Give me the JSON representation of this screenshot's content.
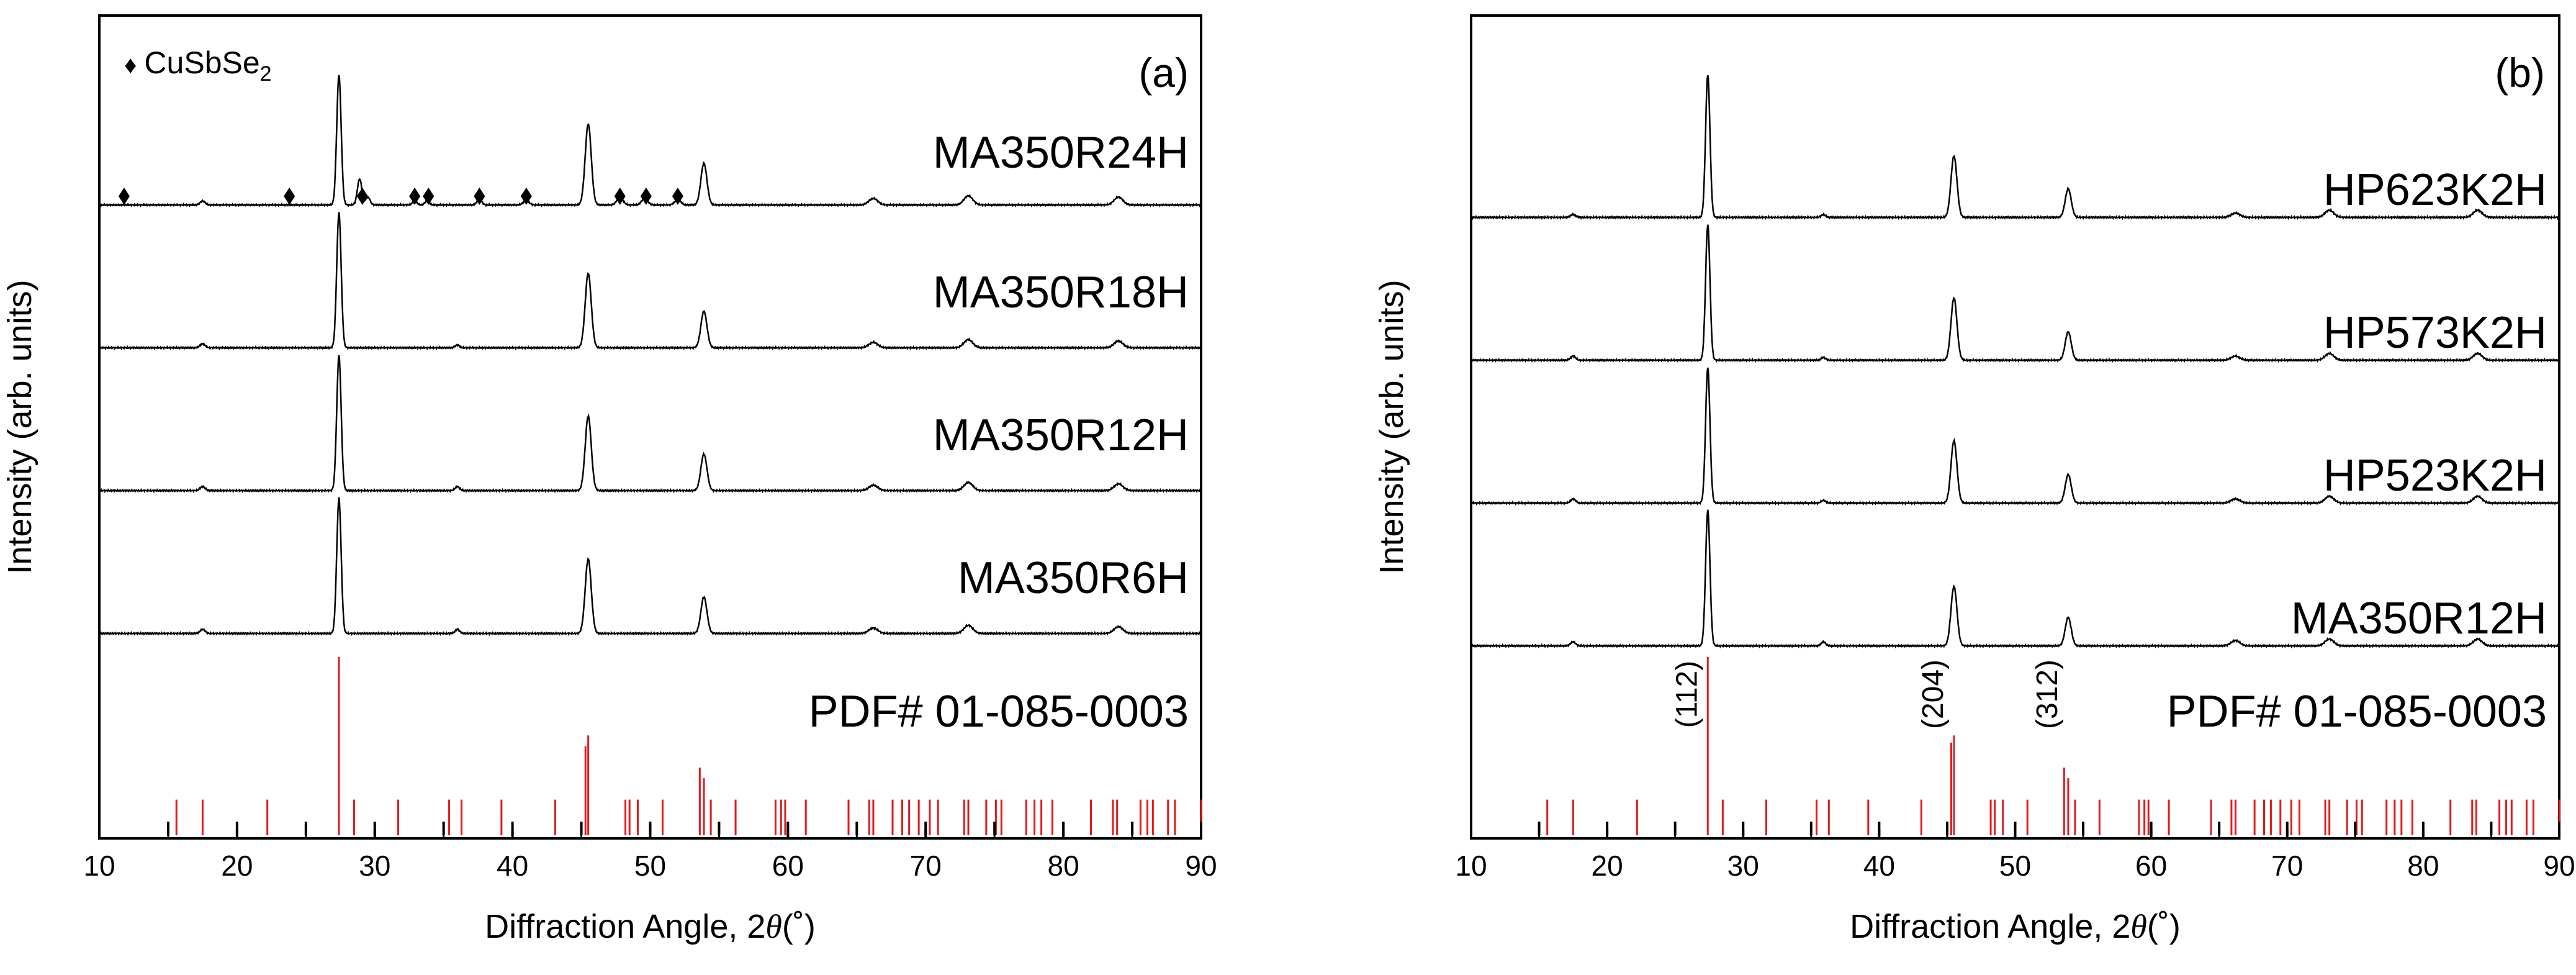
{
  "chart_data": [
    {
      "panel": "(a)",
      "type": "line",
      "title": "",
      "xlabel_prefix": "Diffraction Angle, 2",
      "xlabel_theta": "θ",
      "xlabel_suffix": "(˚)",
      "ylabel": "Intensity (arb. units)",
      "xlim": [
        10,
        90
      ],
      "xticks": [
        10,
        20,
        30,
        40,
        50,
        60,
        70,
        80,
        90
      ],
      "legend": {
        "marker": "♦",
        "text": "CuSbSe",
        "sub": "2"
      },
      "series": [
        {
          "name": "MA350R24H",
          "peaks": [
            [
              27.4,
              1.0
            ],
            [
              28.9,
              0.2
            ],
            [
              45.5,
              0.62
            ],
            [
              53.9,
              0.32
            ],
            [
              17.5,
              0.03
            ],
            [
              66.2,
              0.05
            ],
            [
              73.1,
              0.07
            ],
            [
              84.0,
              0.06
            ],
            [
              29.5,
              0.06
            ],
            [
              32.9,
              0.03
            ],
            [
              33.8,
              0.03
            ],
            [
              37.6,
              0.05
            ],
            [
              41.0,
              0.03
            ],
            [
              47.8,
              0.06
            ],
            [
              49.6,
              0.05
            ],
            [
              52.0,
              0.04
            ]
          ],
          "markers": [
            11.8,
            23.8,
            29.1,
            32.9,
            33.9,
            37.6,
            41.0,
            47.8,
            49.7,
            52.0
          ]
        },
        {
          "name": "MA350R18H",
          "peaks": [
            [
              27.4,
              1.0
            ],
            [
              45.5,
              0.55
            ],
            [
              53.9,
              0.27
            ],
            [
              17.5,
              0.03
            ],
            [
              36.0,
              0.02
            ],
            [
              66.2,
              0.04
            ],
            [
              73.1,
              0.06
            ],
            [
              84.0,
              0.05
            ]
          ],
          "markers": []
        },
        {
          "name": "MA350R12H",
          "peaks": [
            [
              27.4,
              1.0
            ],
            [
              45.5,
              0.55
            ],
            [
              53.9,
              0.27
            ],
            [
              17.5,
              0.03
            ],
            [
              36.0,
              0.03
            ],
            [
              66.2,
              0.04
            ],
            [
              73.1,
              0.06
            ],
            [
              84.0,
              0.05
            ]
          ],
          "markers": []
        },
        {
          "name": "MA350R6H",
          "peaks": [
            [
              27.4,
              1.0
            ],
            [
              45.5,
              0.55
            ],
            [
              53.9,
              0.27
            ],
            [
              17.5,
              0.03
            ],
            [
              36.0,
              0.03
            ],
            [
              66.2,
              0.04
            ],
            [
              73.1,
              0.06
            ],
            [
              84.0,
              0.05
            ]
          ],
          "markers": []
        }
      ],
      "reference": {
        "label": "PDF# 01-085-0003",
        "red_sticks": [
          [
            15.6,
            0.2
          ],
          [
            17.5,
            0.2
          ],
          [
            22.2,
            0.2
          ],
          [
            27.4,
            1.0
          ],
          [
            28.5,
            0.2
          ],
          [
            31.7,
            0.2
          ],
          [
            35.4,
            0.2
          ],
          [
            36.3,
            0.2
          ],
          [
            39.2,
            0.2
          ],
          [
            43.1,
            0.2
          ],
          [
            45.3,
            0.5
          ],
          [
            45.5,
            0.56
          ],
          [
            48.2,
            0.2
          ],
          [
            48.5,
            0.2
          ],
          [
            49.1,
            0.2
          ],
          [
            50.9,
            0.2
          ],
          [
            53.6,
            0.38
          ],
          [
            53.9,
            0.32
          ],
          [
            54.4,
            0.2
          ],
          [
            56.2,
            0.2
          ],
          [
            59.1,
            0.2
          ],
          [
            59.5,
            0.2
          ],
          [
            59.8,
            0.2
          ],
          [
            61.3,
            0.2
          ],
          [
            64.4,
            0.2
          ],
          [
            65.9,
            0.2
          ],
          [
            66.2,
            0.2
          ],
          [
            67.6,
            0.2
          ],
          [
            68.3,
            0.2
          ],
          [
            68.8,
            0.2
          ],
          [
            69.5,
            0.2
          ],
          [
            70.3,
            0.2
          ],
          [
            70.9,
            0.2
          ],
          [
            72.8,
            0.2
          ],
          [
            73.1,
            0.2
          ],
          [
            74.4,
            0.2
          ],
          [
            75.1,
            0.2
          ],
          [
            75.5,
            0.2
          ],
          [
            77.3,
            0.2
          ],
          [
            77.9,
            0.2
          ],
          [
            78.4,
            0.2
          ],
          [
            79.2,
            0.2
          ],
          [
            82.0,
            0.2
          ],
          [
            83.6,
            0.2
          ],
          [
            83.9,
            0.2
          ],
          [
            85.6,
            0.2
          ],
          [
            86.1,
            0.2
          ],
          [
            86.5,
            0.2
          ],
          [
            87.6,
            0.2
          ],
          [
            88.1,
            0.2
          ],
          [
            90.0,
            0.2
          ]
        ],
        "black_sticks": [
          15,
          20,
          25,
          30,
          35,
          40,
          45,
          50,
          55,
          60,
          65,
          70,
          75,
          80,
          85,
          90
        ]
      }
    },
    {
      "panel": "(b)",
      "type": "line",
      "title": "",
      "xlabel_prefix": "Diffraction Angle, 2",
      "xlabel_theta": "θ",
      "xlabel_suffix": "(˚)",
      "ylabel": "Intensity (arb. units)",
      "xlim": [
        10,
        90
      ],
      "xticks": [
        10,
        20,
        30,
        40,
        50,
        60,
        70,
        80,
        90
      ],
      "series": [
        {
          "name": "HP623K2H",
          "peaks": [
            [
              27.4,
              1.0
            ],
            [
              45.5,
              0.43
            ],
            [
              53.9,
              0.2
            ],
            [
              17.5,
              0.02
            ],
            [
              35.9,
              0.02
            ],
            [
              66.2,
              0.03
            ],
            [
              73.1,
              0.05
            ],
            [
              84.0,
              0.05
            ]
          ]
        },
        {
          "name": "HP573K2H",
          "peaks": [
            [
              27.4,
              1.0
            ],
            [
              45.5,
              0.46
            ],
            [
              53.9,
              0.21
            ],
            [
              17.5,
              0.03
            ],
            [
              35.9,
              0.02
            ],
            [
              66.2,
              0.03
            ],
            [
              73.1,
              0.05
            ],
            [
              84.0,
              0.05
            ]
          ]
        },
        {
          "name": "HP523K2H",
          "peaks": [
            [
              27.4,
              1.0
            ],
            [
              45.5,
              0.46
            ],
            [
              53.9,
              0.21
            ],
            [
              17.5,
              0.03
            ],
            [
              35.9,
              0.02
            ],
            [
              66.2,
              0.03
            ],
            [
              73.1,
              0.05
            ],
            [
              84.0,
              0.05
            ]
          ]
        },
        {
          "name": "MA350R12H",
          "peaks": [
            [
              27.4,
              1.0
            ],
            [
              45.5,
              0.44
            ],
            [
              53.9,
              0.21
            ],
            [
              17.5,
              0.03
            ],
            [
              35.9,
              0.03
            ],
            [
              66.2,
              0.04
            ],
            [
              73.1,
              0.05
            ],
            [
              84.0,
              0.05
            ]
          ]
        }
      ],
      "reference": {
        "label": "PDF# 01-085-0003",
        "annotations": [
          {
            "text": "(112)",
            "x": 27.4
          },
          {
            "text": "(204)",
            "x": 45.5
          },
          {
            "text": "(312)",
            "x": 53.9
          }
        ],
        "red_sticks": [
          [
            15.6,
            0.2
          ],
          [
            17.5,
            0.2
          ],
          [
            22.2,
            0.2
          ],
          [
            27.4,
            1.0
          ],
          [
            28.5,
            0.2
          ],
          [
            31.7,
            0.2
          ],
          [
            35.4,
            0.2
          ],
          [
            36.3,
            0.2
          ],
          [
            39.2,
            0.2
          ],
          [
            43.1,
            0.2
          ],
          [
            45.3,
            0.52
          ],
          [
            45.5,
            0.56
          ],
          [
            48.2,
            0.2
          ],
          [
            48.5,
            0.2
          ],
          [
            49.1,
            0.2
          ],
          [
            50.9,
            0.2
          ],
          [
            53.6,
            0.38
          ],
          [
            53.9,
            0.32
          ],
          [
            54.4,
            0.2
          ],
          [
            56.2,
            0.2
          ],
          [
            59.1,
            0.2
          ],
          [
            59.5,
            0.2
          ],
          [
            59.8,
            0.2
          ],
          [
            61.3,
            0.2
          ],
          [
            64.4,
            0.2
          ],
          [
            65.9,
            0.2
          ],
          [
            66.2,
            0.2
          ],
          [
            67.6,
            0.2
          ],
          [
            68.3,
            0.2
          ],
          [
            68.8,
            0.2
          ],
          [
            69.5,
            0.2
          ],
          [
            70.3,
            0.2
          ],
          [
            70.9,
            0.2
          ],
          [
            72.8,
            0.2
          ],
          [
            73.1,
            0.2
          ],
          [
            74.4,
            0.2
          ],
          [
            75.1,
            0.2
          ],
          [
            75.5,
            0.2
          ],
          [
            77.3,
            0.2
          ],
          [
            77.9,
            0.2
          ],
          [
            78.4,
            0.2
          ],
          [
            79.2,
            0.2
          ],
          [
            82.0,
            0.2
          ],
          [
            83.6,
            0.2
          ],
          [
            83.9,
            0.2
          ],
          [
            85.6,
            0.2
          ],
          [
            86.1,
            0.2
          ],
          [
            86.5,
            0.2
          ],
          [
            87.6,
            0.2
          ],
          [
            88.1,
            0.2
          ],
          [
            90.0,
            0.2
          ]
        ],
        "black_sticks": [
          15,
          20,
          25,
          30,
          35,
          40,
          45,
          50,
          55,
          60,
          65,
          70,
          75,
          80,
          85,
          90
        ]
      }
    }
  ]
}
